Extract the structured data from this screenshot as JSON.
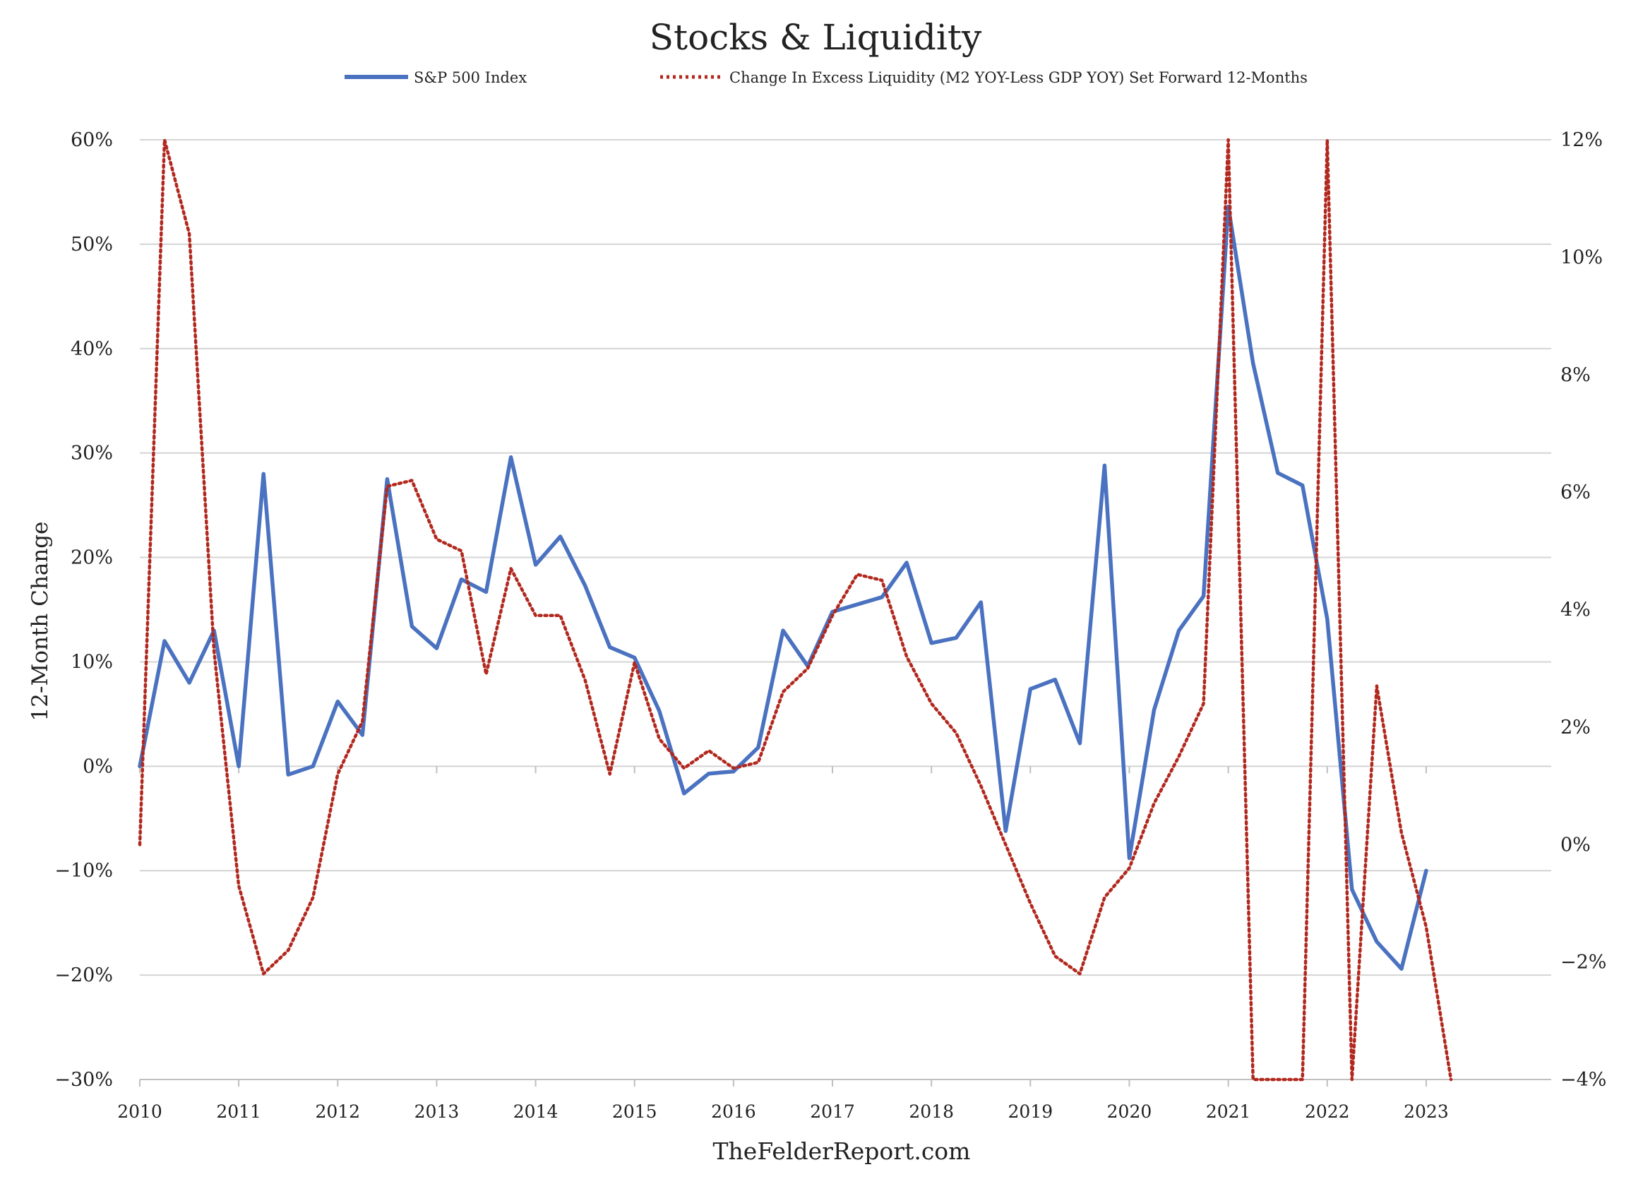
{
  "chart_data": {
    "type": "line",
    "title": "Stocks & Liquidity",
    "ylabel": "12-Month Change",
    "footer": "TheFelderReport.com",
    "x_tick_labels": [
      "2010",
      "2011",
      "2012",
      "2013",
      "2014",
      "2015",
      "2016",
      "2017",
      "2018",
      "2019",
      "2020",
      "2021",
      "2022",
      "2023"
    ],
    "x_range": [
      2010,
      2024
    ],
    "y_left": {
      "min": -30,
      "max": 60,
      "step": 10,
      "tick_labels": [
        "60%",
        "50%",
        "40%",
        "30%",
        "20%",
        "10%",
        "0%",
        "−10%",
        "−20%",
        "−30%"
      ]
    },
    "y_right": {
      "min": -4,
      "max": 12,
      "step": 2,
      "tick_labels": [
        "12%",
        "10%",
        "8%",
        "6%",
        "4%",
        "2%",
        "0%",
        "−2%",
        "−4%"
      ]
    },
    "grid": "horizontal",
    "legend_position": "top",
    "series": [
      {
        "name": "S&P 500 Index",
        "axis": "left",
        "color": "#4A72C0",
        "style": "solid",
        "x": [
          2010.0,
          2010.25,
          2010.5,
          2010.75,
          2011.0,
          2011.25,
          2011.5,
          2011.75,
          2012.0,
          2012.25,
          2012.5,
          2012.75,
          2013.0,
          2013.25,
          2013.5,
          2013.75,
          2014.0,
          2014.25,
          2014.5,
          2014.75,
          2015.0,
          2015.25,
          2015.5,
          2015.75,
          2016.0,
          2016.25,
          2016.5,
          2016.75,
          2017.0,
          2017.25,
          2017.5,
          2017.75,
          2018.0,
          2018.25,
          2018.5,
          2018.75,
          2019.0,
          2019.25,
          2019.5,
          2019.75,
          2020.0,
          2020.25,
          2020.5,
          2020.75,
          2021.0,
          2021.25,
          2021.5,
          2021.75,
          2022.0,
          2022.25,
          2022.5,
          2022.75,
          2023.0
        ],
        "values": [
          0,
          12,
          8,
          13,
          0,
          28,
          -0.8,
          0,
          6.2,
          3,
          27.5,
          13.4,
          11.3,
          17.9,
          16.7,
          29.6,
          19.3,
          22,
          17.3,
          11.4,
          10.4,
          5.3,
          -2.6,
          -0.7,
          -0.5,
          1.8,
          13,
          9.6,
          14.8,
          15.5,
          16.2,
          19.5,
          11.8,
          12.3,
          15.7,
          -6.2,
          7.4,
          8.3,
          2.2,
          28.8,
          -8.8,
          5.4,
          13,
          16.3,
          53.6,
          38.6,
          28.1,
          26.9,
          14.1,
          -11.8,
          -16.8,
          -19.4,
          -10
        ]
      },
      {
        "name": "Change In Excess Liquidity (M2 YOY-Less GDP YOY) Set Forward 12-Months",
        "axis": "right",
        "color": "#B2281E",
        "style": "dotted",
        "x": [
          2010.0,
          2010.25,
          2010.5,
          2010.75,
          2011.0,
          2011.25,
          2011.5,
          2011.75,
          2012.0,
          2012.25,
          2012.5,
          2012.75,
          2013.0,
          2013.25,
          2013.5,
          2013.75,
          2014.0,
          2014.25,
          2014.5,
          2014.75,
          2015.0,
          2015.25,
          2015.5,
          2015.75,
          2016.0,
          2016.25,
          2016.5,
          2016.75,
          2017.0,
          2017.25,
          2017.5,
          2017.75,
          2018.0,
          2018.25,
          2018.5,
          2018.75,
          2019.0,
          2019.25,
          2019.5,
          2019.75,
          2020.0,
          2020.25,
          2020.5,
          2020.75,
          2021.0,
          2021.25,
          2021.5,
          2021.75,
          2022.0,
          2022.25,
          2022.5,
          2022.75,
          2023.0,
          2023.25
        ],
        "values": [
          0,
          12,
          10.4,
          3.3,
          -0.7,
          -2.2,
          -1.8,
          -0.9,
          1.2,
          2.1,
          6.1,
          6.2,
          5.2,
          5,
          2.9,
          4.7,
          3.9,
          3.9,
          2.8,
          1.2,
          3.1,
          1.8,
          1.3,
          1.6,
          1.3,
          1.4,
          2.6,
          3,
          3.9,
          4.6,
          4.5,
          3.2,
          2.4,
          1.9,
          1,
          0,
          -1,
          -1.9,
          -2.2,
          -0.9,
          -0.4,
          0.7,
          1.5,
          2.4,
          12,
          -4,
          -4,
          -4,
          12,
          -4,
          2.7,
          0.2,
          -1.4,
          -4
        ]
      }
    ]
  }
}
